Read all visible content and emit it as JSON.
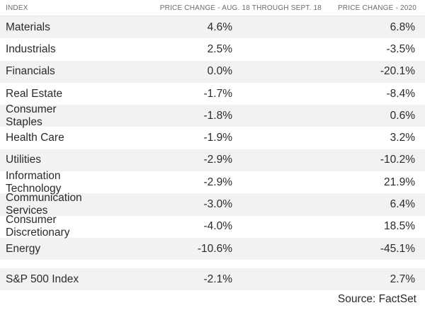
{
  "headers": {
    "index": "INDEX",
    "change_period": "PRICE CHANGE - AUG. 18 THROUGH SEPT. 18",
    "change_ytd": "PRICE CHANGE - 2020"
  },
  "rows": [
    {
      "name": "Materials",
      "period": "4.6%",
      "ytd": "6.8%"
    },
    {
      "name": "Industrials",
      "period": "2.5%",
      "ytd": "-3.5%"
    },
    {
      "name": "Financials",
      "period": "0.0%",
      "ytd": "-20.1%"
    },
    {
      "name": "Real Estate",
      "period": "-1.7%",
      "ytd": "-8.4%"
    },
    {
      "name": "Consumer Staples",
      "period": "-1.8%",
      "ytd": "0.6%"
    },
    {
      "name": "Health Care",
      "period": "-1.9%",
      "ytd": "3.2%"
    },
    {
      "name": "Utilities",
      "period": "-2.9%",
      "ytd": "-10.2%"
    },
    {
      "name": "Information Technology",
      "period": "-2.9%",
      "ytd": "21.9%"
    },
    {
      "name": "Communication Services",
      "period": "-3.0%",
      "ytd": "6.4%"
    },
    {
      "name": "Consumer Discretionary",
      "period": "-4.0%",
      "ytd": "18.5%"
    },
    {
      "name": "Energy",
      "period": "-10.6%",
      "ytd": "-45.1%"
    }
  ],
  "summary": {
    "name": "S&P 500 Index",
    "period": "-2.1%",
    "ytd": "2.7%"
  },
  "source": "Source: FactSet",
  "colors": {
    "shade": "#f2f2f2",
    "header_text": "#6b6b6b",
    "body_text": "#2a2a2a"
  }
}
